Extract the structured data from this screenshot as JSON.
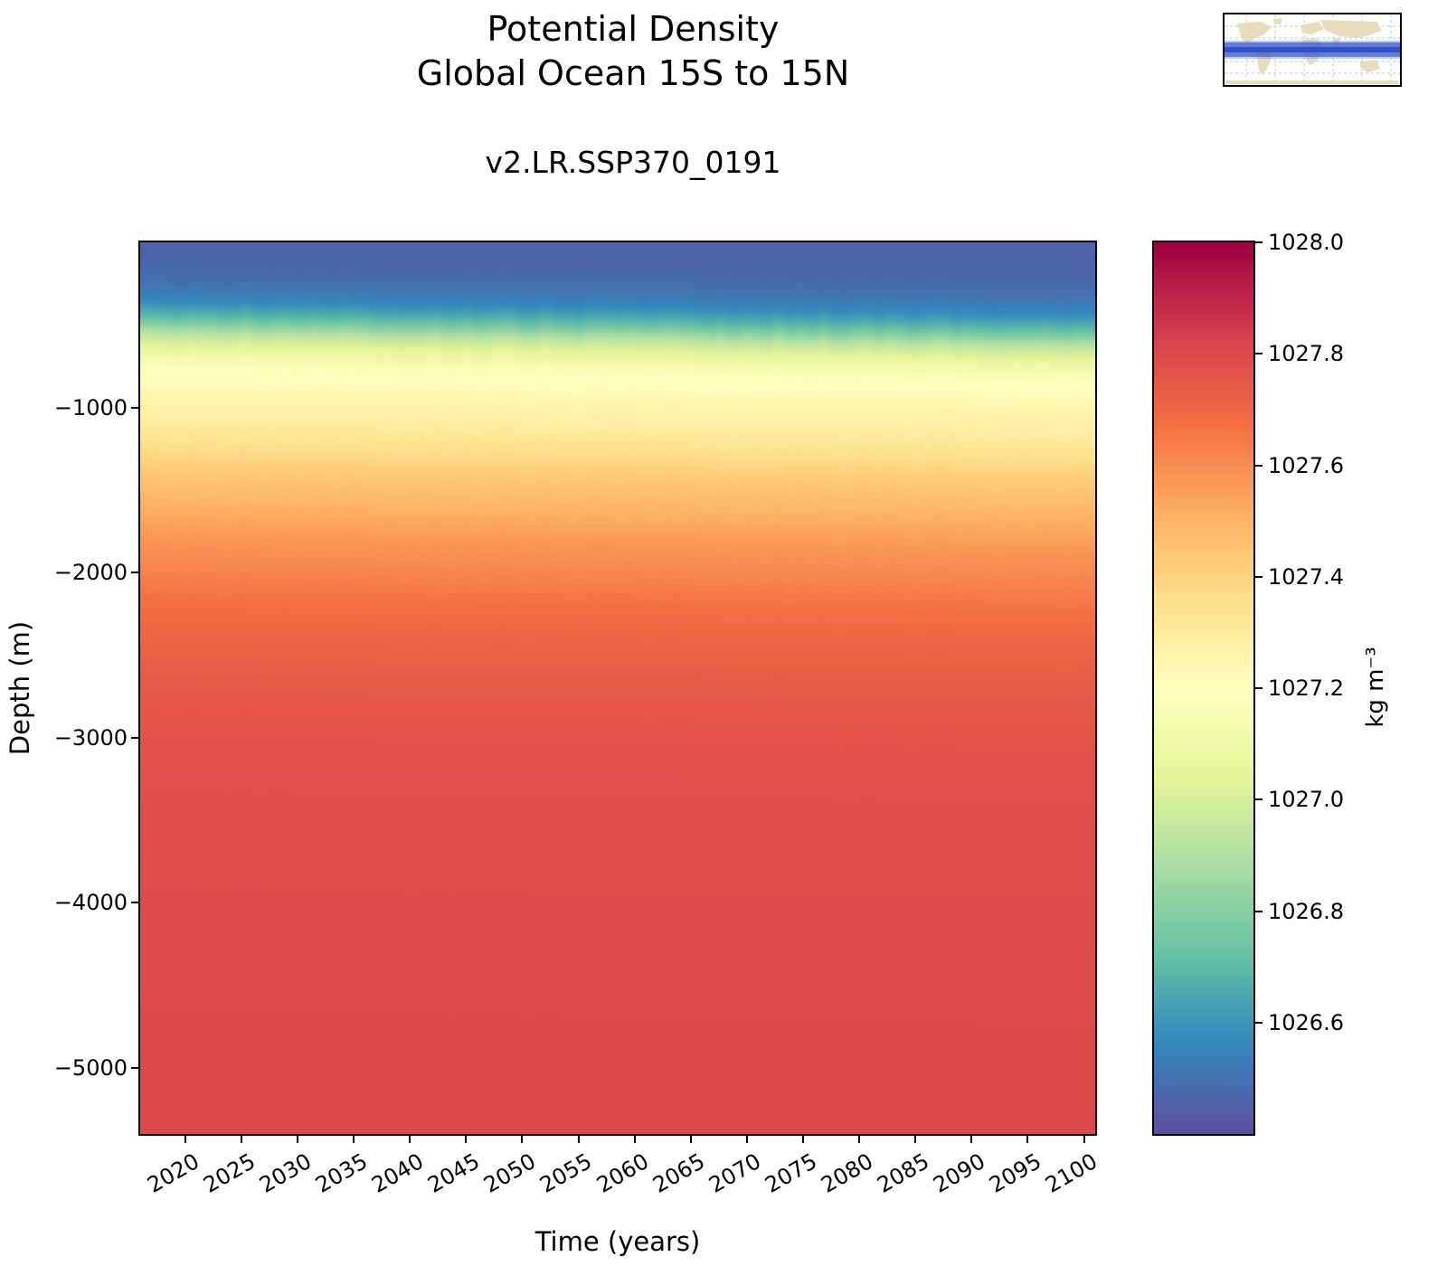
{
  "figure": {
    "title_line1": "Potential Density",
    "title_line2": "Global Ocean 15S to 15N",
    "subtitle": "v2.LR.SSP370_0191"
  },
  "x_axis": {
    "label": "Time (years)",
    "range": [
      2016,
      2101
    ],
    "tick_years": [
      2020,
      2025,
      2030,
      2035,
      2040,
      2045,
      2050,
      2055,
      2060,
      2065,
      2070,
      2075,
      2080,
      2085,
      2090,
      2095,
      2100
    ]
  },
  "y_axis": {
    "label": "Depth (m)",
    "range": [
      0,
      -5400
    ],
    "tick_depths": [
      -1000,
      -2000,
      -3000,
      -4000,
      -5000
    ]
  },
  "colorbar": {
    "label": "kg m⁻³",
    "ticks": [
      1028.0,
      1027.8,
      1027.6,
      1027.4,
      1027.2,
      1027.0,
      1026.8,
      1026.6
    ],
    "vmin": 1026.4,
    "vmax": 1028.0,
    "colormap": "Spectral_r",
    "stops": [
      [
        0.0,
        "#5e4fa2"
      ],
      [
        0.1,
        "#3288bd"
      ],
      [
        0.2,
        "#66c2a5"
      ],
      [
        0.3,
        "#abdda4"
      ],
      [
        0.4,
        "#e6f598"
      ],
      [
        0.5,
        "#ffffbf"
      ],
      [
        0.6,
        "#fee08b"
      ],
      [
        0.7,
        "#fdae61"
      ],
      [
        0.8,
        "#f46d43"
      ],
      [
        0.9,
        "#d53e4f"
      ],
      [
        1.0,
        "#9e0142"
      ]
    ]
  },
  "chart_data": {
    "type": "heatmap",
    "title": "Potential Density — Global Ocean 15S to 15N",
    "subtitle": "v2.LR.SSP370_0191",
    "xlabel": "Time (years)",
    "ylabel": "Depth (m)",
    "units": "kg m⁻³",
    "x_years": [
      2016,
      2101
    ],
    "depth_range_m": [
      0,
      -5400
    ],
    "vmin": 1026.4,
    "vmax": 1028.0,
    "depth_profile": {
      "depths_m": [
        0,
        150,
        250,
        350,
        450,
        550,
        650,
        750,
        900,
        1100,
        1400,
        1800,
        2200,
        2600,
        3000,
        3600,
        4400,
        5400
      ],
      "sigma_kg_m3": [
        1026.46,
        1026.47,
        1026.5,
        1026.56,
        1026.7,
        1026.92,
        1027.08,
        1027.17,
        1027.24,
        1027.3,
        1027.44,
        1027.58,
        1027.68,
        1027.74,
        1027.77,
        1027.79,
        1027.8,
        1027.805
      ]
    },
    "trend": {
      "isopycnal_deepening_m_per_year": 1.0,
      "interannual_noise_m": 10
    }
  }
}
